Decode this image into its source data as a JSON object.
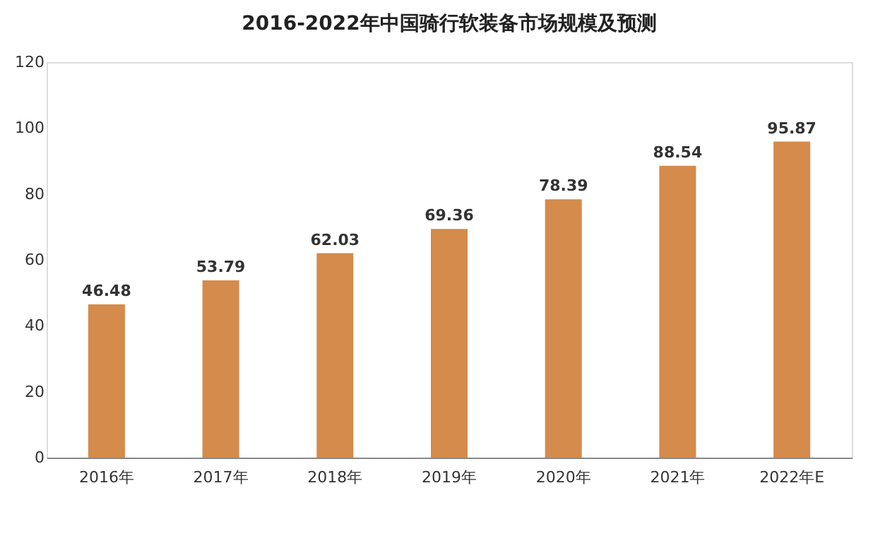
{
  "chart_data": {
    "type": "bar",
    "title": "2016-2022年中国骑行软装备市场规模及预测",
    "categories": [
      "2016年",
      "2017年",
      "2018年",
      "2019年",
      "2020年",
      "2021年",
      "2022年E"
    ],
    "values": [
      46.48,
      53.79,
      62.03,
      69.36,
      78.39,
      88.54,
      95.87
    ],
    "color": "#d58b4b",
    "ylim": [
      0,
      120
    ],
    "yticks": [
      0,
      20,
      40,
      60,
      80,
      100,
      120
    ],
    "grid": false,
    "data_labels": true
  }
}
